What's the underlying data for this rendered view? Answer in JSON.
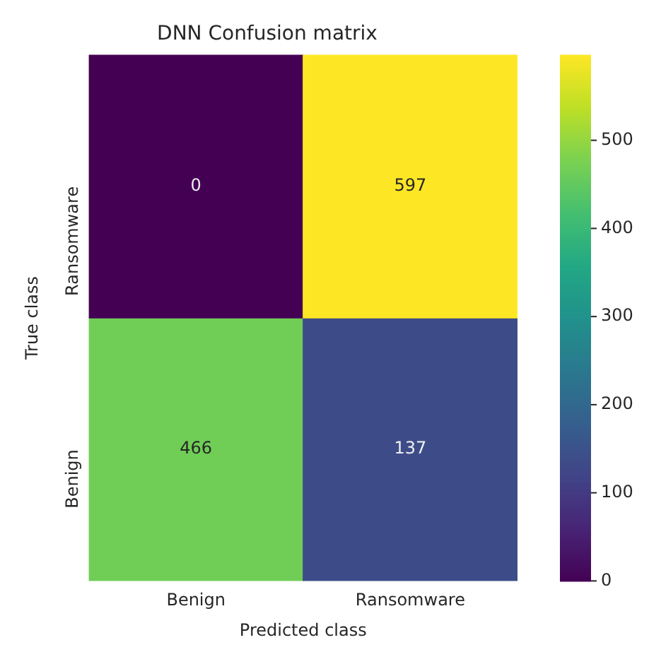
{
  "chart_data": {
    "type": "heatmap",
    "title": "DNN Confusion matrix",
    "xlabel": "Predicted class",
    "ylabel": "True class",
    "categories": [
      "Benign",
      "Ransomware"
    ],
    "y_categories": [
      "Ransomware",
      "Benign"
    ],
    "cells": [
      [
        0,
        597
      ],
      [
        466,
        137
      ]
    ],
    "clim": [
      0,
      597
    ],
    "cticks": [
      0,
      100,
      200,
      300,
      400,
      500
    ],
    "data_labels": true,
    "grid": false
  }
}
